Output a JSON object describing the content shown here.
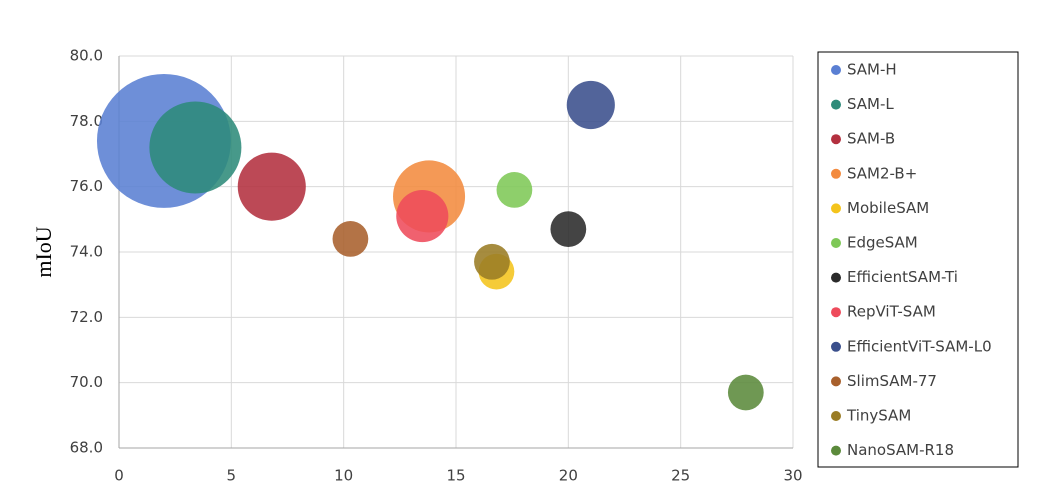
{
  "chart_data": {
    "type": "bubble",
    "y_label": "mIoU",
    "xlim": [
      0,
      30
    ],
    "xticks": [
      0,
      5,
      10,
      15,
      20,
      25,
      30
    ],
    "ylim": [
      68,
      80
    ],
    "yticks": [
      {
        "value": 68,
        "label": "68.0"
      },
      {
        "value": 70,
        "label": "70.0"
      },
      {
        "value": 72,
        "label": "72.0"
      },
      {
        "value": 74,
        "label": "74.0"
      },
      {
        "value": 76,
        "label": "76.0"
      },
      {
        "value": 78,
        "label": "78.0"
      },
      {
        "value": 80,
        "label": "80.0"
      }
    ],
    "grid": true,
    "legend": "right",
    "series": [
      {
        "name": "SAM-H",
        "color": "#5a7fd3",
        "x": [
          2.0
        ],
        "values": [
          77.4
        ],
        "sizes": [
          449
        ]
      },
      {
        "name": "SAM-L",
        "color": "#2e8b7a",
        "x": [
          3.4
        ],
        "values": [
          77.2
        ],
        "sizes": [
          212
        ]
      },
      {
        "name": "SAM-B",
        "color": "#b3303f",
        "x": [
          6.8
        ],
        "values": [
          76.0
        ],
        "sizes": [
          116
        ]
      },
      {
        "name": "SAM2-B+",
        "color": "#f38b3f",
        "x": [
          13.8
        ],
        "values": [
          75.7
        ],
        "sizes": [
          130
        ]
      },
      {
        "name": "MobileSAM",
        "color": "#f4c41c",
        "x": [
          16.8
        ],
        "values": [
          73.4
        ],
        "sizes": [
          32
        ]
      },
      {
        "name": "EdgeSAM",
        "color": "#7ec857",
        "x": [
          17.6
        ],
        "values": [
          75.9
        ],
        "sizes": [
          32
        ]
      },
      {
        "name": "EfficientSAM-Ti",
        "color": "#2a2a2a",
        "x": [
          20.0
        ],
        "values": [
          74.7
        ],
        "sizes": [
          32
        ]
      },
      {
        "name": "RepViT-SAM",
        "color": "#ee4b5b",
        "x": [
          13.5
        ],
        "values": [
          75.1
        ],
        "sizes": [
          68
        ]
      },
      {
        "name": "EfficientViT-SAM-L0",
        "color": "#3a4f8c",
        "x": [
          21.0
        ],
        "values": [
          78.5
        ],
        "sizes": [
          58
        ]
      },
      {
        "name": "SlimSAM-77",
        "color": "#a8602c",
        "x": [
          10.3
        ],
        "values": [
          74.4
        ],
        "sizes": [
          32
        ]
      },
      {
        "name": "TinySAM",
        "color": "#9a7c24",
        "x": [
          16.6
        ],
        "values": [
          73.7
        ],
        "sizes": [
          32
        ]
      },
      {
        "name": "NanoSAM-R18",
        "color": "#5b8a3b",
        "x": [
          27.9
        ],
        "values": [
          69.7
        ],
        "sizes": [
          32
        ]
      }
    ]
  }
}
